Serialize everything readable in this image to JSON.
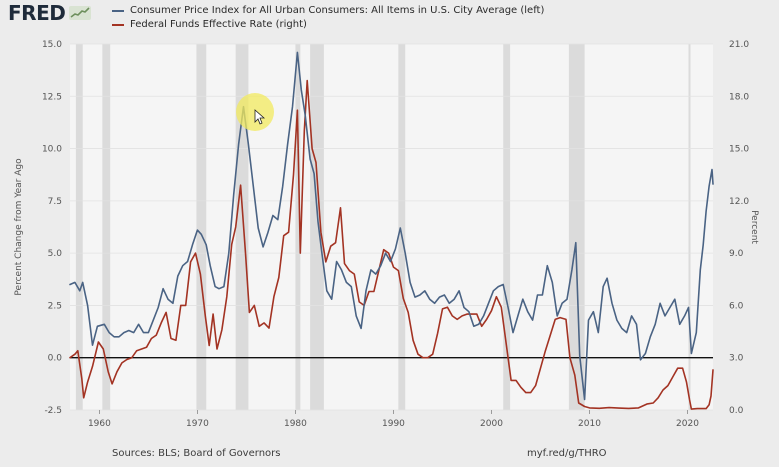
{
  "brand": {
    "name": "FRED"
  },
  "footer": {
    "sources": "Sources: BLS; Board of Governors",
    "link": "myf.red/g/THRO"
  },
  "chart_data": {
    "type": "line",
    "xlim": [
      1957,
      2022.6
    ],
    "ylim_left": [
      -2.5,
      15
    ],
    "ylim_right": [
      0,
      21
    ],
    "ylabel_left": "Percent Change from Year Ago",
    "ylabel_right": "Percent",
    "x_ticks": [
      {
        "value": 1960,
        "label": "1960"
      },
      {
        "value": 1970,
        "label": "1970"
      },
      {
        "value": 1980,
        "label": "1980"
      },
      {
        "value": 1990,
        "label": "1990"
      },
      {
        "value": 2000,
        "label": "2000"
      },
      {
        "value": 2010,
        "label": "2010"
      },
      {
        "value": 2020,
        "label": "2020"
      }
    ],
    "y_ticks_left": [
      {
        "value": -2.5,
        "label": "-2.5"
      },
      {
        "value": 0,
        "label": "0.0"
      },
      {
        "value": 2.5,
        "label": "2.5"
      },
      {
        "value": 5,
        "label": "5.0"
      },
      {
        "value": 7.5,
        "label": "7.5"
      },
      {
        "value": 10,
        "label": "10.0"
      },
      {
        "value": 12.5,
        "label": "12.5"
      },
      {
        "value": 15,
        "label": "15.0"
      }
    ],
    "y_ticks_right": [
      {
        "value": 0,
        "label": "0.0"
      },
      {
        "value": 3,
        "label": "3.0"
      },
      {
        "value": 6,
        "label": "6.0"
      },
      {
        "value": 9,
        "label": "9.0"
      },
      {
        "value": 12,
        "label": "12.0"
      },
      {
        "value": 15,
        "label": "15.0"
      },
      {
        "value": 18,
        "label": "18.0"
      },
      {
        "value": 21,
        "label": "21.0"
      }
    ],
    "recessions": [
      [
        1957.6,
        1958.3
      ],
      [
        1960.3,
        1961.1
      ],
      [
        1969.9,
        1970.9
      ],
      [
        1973.9,
        1975.2
      ],
      [
        1980.0,
        1980.5
      ],
      [
        1981.5,
        1982.9
      ],
      [
        1990.5,
        1991.2
      ],
      [
        2001.2,
        2001.9
      ],
      [
        2007.9,
        2009.5
      ],
      [
        2020.1,
        2020.3
      ]
    ],
    "series": [
      {
        "name": "Consumer Price Index for All Urban Consumers: All Items in U.S. City Average (left)",
        "color": "#4a6384",
        "axis": "left",
        "points": [
          [
            1957.0,
            3.5
          ],
          [
            1957.5,
            3.6
          ],
          [
            1958.0,
            3.2
          ],
          [
            1958.3,
            3.6
          ],
          [
            1958.8,
            2.5
          ],
          [
            1959.3,
            0.6
          ],
          [
            1959.8,
            1.5
          ],
          [
            1960.5,
            1.6
          ],
          [
            1961.0,
            1.2
          ],
          [
            1961.5,
            1.0
          ],
          [
            1962.0,
            1.0
          ],
          [
            1962.5,
            1.2
          ],
          [
            1963.0,
            1.3
          ],
          [
            1963.5,
            1.2
          ],
          [
            1964.0,
            1.6
          ],
          [
            1964.5,
            1.2
          ],
          [
            1965.0,
            1.2
          ],
          [
            1965.5,
            1.8
          ],
          [
            1966.0,
            2.4
          ],
          [
            1966.5,
            3.3
          ],
          [
            1967.0,
            2.8
          ],
          [
            1967.5,
            2.6
          ],
          [
            1968.0,
            3.9
          ],
          [
            1968.5,
            4.4
          ],
          [
            1969.0,
            4.6
          ],
          [
            1969.5,
            5.4
          ],
          [
            1970.0,
            6.1
          ],
          [
            1970.4,
            5.9
          ],
          [
            1970.9,
            5.4
          ],
          [
            1971.3,
            4.4
          ],
          [
            1971.8,
            3.4
          ],
          [
            1972.2,
            3.3
          ],
          [
            1972.7,
            3.4
          ],
          [
            1973.2,
            5.0
          ],
          [
            1973.7,
            7.8
          ],
          [
            1974.2,
            10.2
          ],
          [
            1974.7,
            12.0
          ],
          [
            1975.2,
            10.2
          ],
          [
            1975.7,
            8.2
          ],
          [
            1976.2,
            6.2
          ],
          [
            1976.7,
            5.3
          ],
          [
            1977.2,
            6.0
          ],
          [
            1977.7,
            6.8
          ],
          [
            1978.2,
            6.6
          ],
          [
            1978.7,
            8.2
          ],
          [
            1979.2,
            10.2
          ],
          [
            1979.7,
            12.0
          ],
          [
            1980.2,
            14.6
          ],
          [
            1980.6,
            12.8
          ],
          [
            1981.0,
            11.6
          ],
          [
            1981.5,
            9.5
          ],
          [
            1981.9,
            8.8
          ],
          [
            1982.3,
            6.5
          ],
          [
            1982.7,
            5.0
          ],
          [
            1983.2,
            3.2
          ],
          [
            1983.7,
            2.8
          ],
          [
            1984.2,
            4.6
          ],
          [
            1984.7,
            4.2
          ],
          [
            1985.2,
            3.6
          ],
          [
            1985.7,
            3.4
          ],
          [
            1986.2,
            2.0
          ],
          [
            1986.7,
            1.4
          ],
          [
            1987.2,
            3.2
          ],
          [
            1987.7,
            4.2
          ],
          [
            1988.2,
            4.0
          ],
          [
            1988.7,
            4.4
          ],
          [
            1989.2,
            5.0
          ],
          [
            1989.7,
            4.6
          ],
          [
            1990.2,
            5.2
          ],
          [
            1990.7,
            6.2
          ],
          [
            1991.2,
            5.0
          ],
          [
            1991.7,
            3.6
          ],
          [
            1992.2,
            2.9
          ],
          [
            1992.7,
            3.0
          ],
          [
            1993.2,
            3.2
          ],
          [
            1993.7,
            2.8
          ],
          [
            1994.2,
            2.6
          ],
          [
            1994.7,
            2.9
          ],
          [
            1995.2,
            3.0
          ],
          [
            1995.7,
            2.6
          ],
          [
            1996.2,
            2.8
          ],
          [
            1996.7,
            3.2
          ],
          [
            1997.2,
            2.4
          ],
          [
            1997.7,
            2.2
          ],
          [
            1998.2,
            1.5
          ],
          [
            1998.7,
            1.6
          ],
          [
            1999.2,
            2.0
          ],
          [
            1999.7,
            2.6
          ],
          [
            2000.2,
            3.2
          ],
          [
            2000.7,
            3.4
          ],
          [
            2001.2,
            3.5
          ],
          [
            2001.7,
            2.4
          ],
          [
            2002.2,
            1.2
          ],
          [
            2002.7,
            2.0
          ],
          [
            2003.2,
            2.8
          ],
          [
            2003.7,
            2.2
          ],
          [
            2004.2,
            1.8
          ],
          [
            2004.7,
            3.0
          ],
          [
            2005.2,
            3.0
          ],
          [
            2005.7,
            4.4
          ],
          [
            2006.2,
            3.6
          ],
          [
            2006.7,
            2.0
          ],
          [
            2007.2,
            2.6
          ],
          [
            2007.7,
            2.8
          ],
          [
            2008.2,
            4.2
          ],
          [
            2008.6,
            5.5
          ],
          [
            2009.0,
            0.1
          ],
          [
            2009.5,
            -2.0
          ],
          [
            2009.9,
            1.8
          ],
          [
            2010.4,
            2.2
          ],
          [
            2010.9,
            1.2
          ],
          [
            2011.4,
            3.4
          ],
          [
            2011.8,
            3.8
          ],
          [
            2012.3,
            2.6
          ],
          [
            2012.8,
            1.8
          ],
          [
            2013.3,
            1.4
          ],
          [
            2013.8,
            1.2
          ],
          [
            2014.3,
            2.0
          ],
          [
            2014.8,
            1.6
          ],
          [
            2015.2,
            -0.1
          ],
          [
            2015.7,
            0.2
          ],
          [
            2016.2,
            1.0
          ],
          [
            2016.7,
            1.6
          ],
          [
            2017.2,
            2.6
          ],
          [
            2017.7,
            2.0
          ],
          [
            2018.2,
            2.4
          ],
          [
            2018.7,
            2.8
          ],
          [
            2019.2,
            1.6
          ],
          [
            2019.7,
            2.0
          ],
          [
            2020.1,
            2.4
          ],
          [
            2020.4,
            0.2
          ],
          [
            2020.9,
            1.2
          ],
          [
            2021.3,
            4.2
          ],
          [
            2021.6,
            5.4
          ],
          [
            2021.9,
            7.0
          ],
          [
            2022.2,
            8.2
          ],
          [
            2022.5,
            9.0
          ],
          [
            2022.6,
            8.3
          ]
        ]
      },
      {
        "name": "Federal Funds Effective Rate (right)",
        "color": "#a33323",
        "axis": "right",
        "points": [
          [
            1957.0,
            3.0
          ],
          [
            1957.5,
            3.2
          ],
          [
            1957.8,
            3.4
          ],
          [
            1958.2,
            1.8
          ],
          [
            1958.4,
            0.7
          ],
          [
            1958.8,
            1.6
          ],
          [
            1959.3,
            2.5
          ],
          [
            1959.9,
            3.9
          ],
          [
            1960.4,
            3.5
          ],
          [
            1960.9,
            2.2
          ],
          [
            1961.3,
            1.5
          ],
          [
            1961.8,
            2.2
          ],
          [
            1962.3,
            2.7
          ],
          [
            1962.8,
            2.9
          ],
          [
            1963.3,
            3.0
          ],
          [
            1963.8,
            3.4
          ],
          [
            1964.3,
            3.5
          ],
          [
            1964.8,
            3.6
          ],
          [
            1965.3,
            4.1
          ],
          [
            1965.8,
            4.3
          ],
          [
            1966.3,
            5.0
          ],
          [
            1966.8,
            5.6
          ],
          [
            1967.3,
            4.1
          ],
          [
            1967.8,
            4.0
          ],
          [
            1968.3,
            6.0
          ],
          [
            1968.8,
            6.0
          ],
          [
            1969.3,
            8.5
          ],
          [
            1969.8,
            9.0
          ],
          [
            1970.3,
            7.8
          ],
          [
            1970.8,
            5.4
          ],
          [
            1971.2,
            3.7
          ],
          [
            1971.6,
            5.5
          ],
          [
            1972.0,
            3.5
          ],
          [
            1972.5,
            4.6
          ],
          [
            1973.0,
            6.5
          ],
          [
            1973.5,
            9.5
          ],
          [
            1973.9,
            10.5
          ],
          [
            1974.4,
            12.9
          ],
          [
            1974.9,
            9.0
          ],
          [
            1975.3,
            5.6
          ],
          [
            1975.8,
            6.0
          ],
          [
            1976.3,
            4.8
          ],
          [
            1976.8,
            5.0
          ],
          [
            1977.3,
            4.7
          ],
          [
            1977.8,
            6.5
          ],
          [
            1978.3,
            7.6
          ],
          [
            1978.8,
            10.0
          ],
          [
            1979.3,
            10.2
          ],
          [
            1979.8,
            13.5
          ],
          [
            1980.2,
            17.2
          ],
          [
            1980.5,
            9.0
          ],
          [
            1980.9,
            16.0
          ],
          [
            1981.2,
            18.9
          ],
          [
            1981.7,
            15.0
          ],
          [
            1982.1,
            14.2
          ],
          [
            1982.6,
            10.2
          ],
          [
            1983.1,
            8.5
          ],
          [
            1983.6,
            9.4
          ],
          [
            1984.1,
            9.6
          ],
          [
            1984.6,
            11.6
          ],
          [
            1985.0,
            8.4
          ],
          [
            1985.5,
            8.0
          ],
          [
            1986.0,
            7.8
          ],
          [
            1986.5,
            6.2
          ],
          [
            1987.0,
            6.0
          ],
          [
            1987.5,
            6.8
          ],
          [
            1988.0,
            6.8
          ],
          [
            1988.5,
            8.0
          ],
          [
            1989.0,
            9.2
          ],
          [
            1989.5,
            9.0
          ],
          [
            1990.0,
            8.2
          ],
          [
            1990.5,
            8.0
          ],
          [
            1991.0,
            6.4
          ],
          [
            1991.5,
            5.6
          ],
          [
            1992.0,
            4.0
          ],
          [
            1992.5,
            3.2
          ],
          [
            1993.0,
            3.0
          ],
          [
            1993.5,
            3.0
          ],
          [
            1994.0,
            3.2
          ],
          [
            1994.5,
            4.4
          ],
          [
            1995.0,
            5.8
          ],
          [
            1995.5,
            5.9
          ],
          [
            1996.0,
            5.4
          ],
          [
            1996.5,
            5.2
          ],
          [
            1997.0,
            5.4
          ],
          [
            1997.5,
            5.5
          ],
          [
            1998.0,
            5.5
          ],
          [
            1998.5,
            5.5
          ],
          [
            1999.0,
            4.8
          ],
          [
            1999.5,
            5.2
          ],
          [
            2000.0,
            5.7
          ],
          [
            2000.5,
            6.5
          ],
          [
            2001.0,
            5.9
          ],
          [
            2001.5,
            3.8
          ],
          [
            2002.0,
            1.7
          ],
          [
            2002.5,
            1.7
          ],
          [
            2003.0,
            1.3
          ],
          [
            2003.5,
            1.0
          ],
          [
            2004.0,
            1.0
          ],
          [
            2004.5,
            1.4
          ],
          [
            2005.0,
            2.4
          ],
          [
            2005.5,
            3.4
          ],
          [
            2006.0,
            4.3
          ],
          [
            2006.5,
            5.2
          ],
          [
            2007.0,
            5.3
          ],
          [
            2007.6,
            5.2
          ],
          [
            2008.0,
            3.0
          ],
          [
            2008.5,
            2.0
          ],
          [
            2008.9,
            0.4
          ],
          [
            2009.5,
            0.2
          ],
          [
            2010.0,
            0.12
          ],
          [
            2011.0,
            0.1
          ],
          [
            2012.0,
            0.14
          ],
          [
            2013.0,
            0.11
          ],
          [
            2014.0,
            0.09
          ],
          [
            2015.0,
            0.12
          ],
          [
            2015.9,
            0.35
          ],
          [
            2016.5,
            0.4
          ],
          [
            2017.0,
            0.7
          ],
          [
            2017.5,
            1.15
          ],
          [
            2018.0,
            1.4
          ],
          [
            2018.5,
            1.9
          ],
          [
            2019.0,
            2.4
          ],
          [
            2019.5,
            2.4
          ],
          [
            2019.9,
            1.6
          ],
          [
            2020.2,
            0.6
          ],
          [
            2020.4,
            0.05
          ],
          [
            2021.0,
            0.08
          ],
          [
            2021.9,
            0.08
          ],
          [
            2022.2,
            0.3
          ],
          [
            2022.4,
            0.8
          ],
          [
            2022.6,
            2.3
          ]
        ]
      }
    ]
  }
}
